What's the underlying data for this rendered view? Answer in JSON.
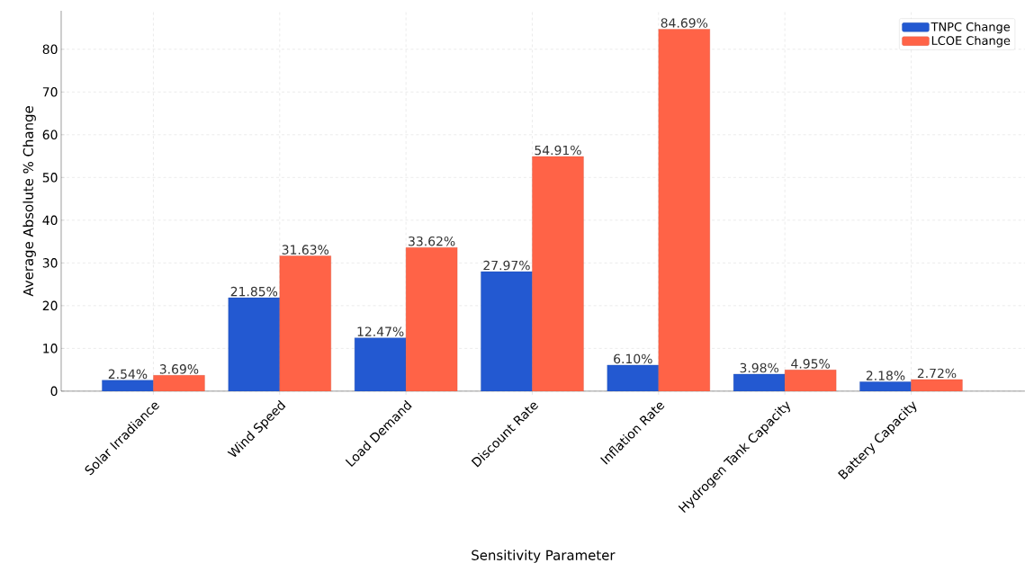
{
  "chart_data": {
    "type": "bar",
    "xlabel": "Sensitivity Parameter",
    "ylabel": "Average Absolute % Change",
    "categories": [
      "Solar Irradiance",
      "Wind Speed",
      "Load Demand",
      "Discount Rate",
      "Inflation Rate",
      "Hydrogen Tank Capacity",
      "Battery Capacity"
    ],
    "series": [
      {
        "name": "TNPC Change",
        "color": "#2359d1",
        "values": [
          2.54,
          21.85,
          12.47,
          27.97,
          6.1,
          3.98,
          2.18
        ],
        "value_labels": [
          "2.54%",
          "21.85%",
          "12.47%",
          "27.97%",
          "6.10%",
          "3.98%",
          "2.18%"
        ]
      },
      {
        "name": "LCOE Change",
        "color": "#ff6347",
        "values": [
          3.69,
          31.63,
          33.62,
          54.91,
          84.69,
          4.95,
          2.72
        ],
        "value_labels": [
          "3.69%",
          "31.63%",
          "33.62%",
          "54.91%",
          "84.69%",
          "4.95%",
          "2.72%"
        ]
      }
    ],
    "ylim": [
      0,
      89
    ],
    "yticks": [
      0,
      10,
      20,
      30,
      40,
      50,
      60,
      70,
      80
    ],
    "grid": true,
    "legend": "top right"
  }
}
